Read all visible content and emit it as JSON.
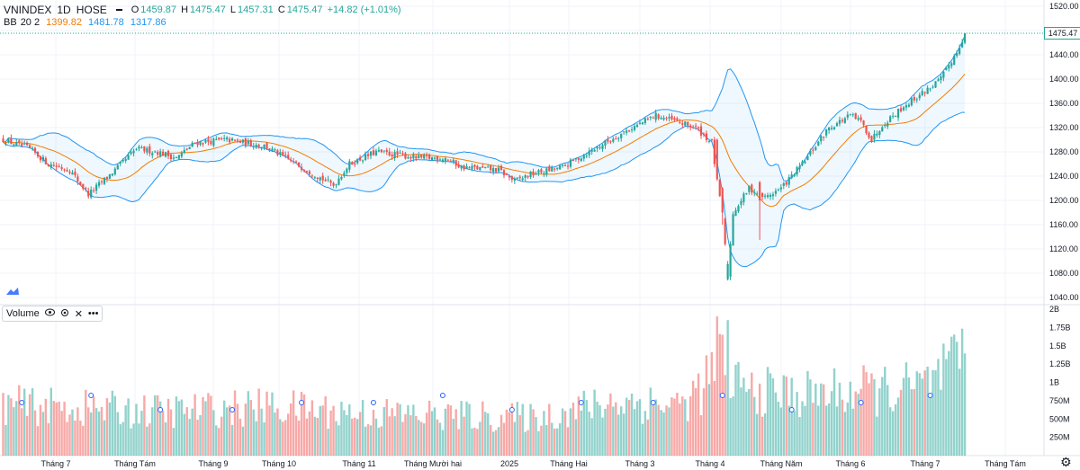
{
  "header": {
    "symbol": "VNINDEX",
    "interval": "1D",
    "exchange": "HOSE",
    "open_label": "O",
    "open": "1459.87",
    "high_label": "H",
    "high": "1475.47",
    "low_label": "L",
    "low": "1457.31",
    "close_label": "C",
    "close": "1475.47",
    "change": "+14.82 (+1.01%)"
  },
  "bb_legend": {
    "name": "BB",
    "params": "20 2",
    "basis": "1399.82",
    "upper": "1481.78",
    "lower": "1317.86"
  },
  "volume_legend": {
    "label": "Volume",
    "more": "•••"
  },
  "last_price_label": "1475.47",
  "colors": {
    "up": "#26a69a",
    "down": "#ef5350",
    "basis": "#f57c00",
    "band": "#2196f3"
  },
  "chart_data": [
    {
      "type": "candlestick",
      "title": "VNINDEX 1D HOSE",
      "x_ticks": [
        "Tháng 7",
        "Tháng Tám",
        "Tháng 9",
        "Tháng 10",
        "Tháng 11",
        "Tháng Mười hai",
        "2025",
        "Tháng Hai",
        "Tháng 3",
        "Tháng 4",
        "Tháng Năm",
        "Tháng 6",
        "Tháng 7",
        "Tháng Tám"
      ],
      "y_ticks": [
        "1520.00",
        "1480.00",
        "1440.00",
        "1400.00",
        "1360.00",
        "1320.00",
        "1280.00",
        "1240.00",
        "1200.00",
        "1160.00",
        "1120.00",
        "1080.00",
        "1040.00"
      ],
      "ylim": [
        1030,
        1525
      ],
      "close_anchors": [
        [
          0,
          1300
        ],
        [
          10,
          1285
        ],
        [
          17,
          1260
        ],
        [
          25,
          1250
        ],
        [
          32,
          1210
        ],
        [
          42,
          1250
        ],
        [
          50,
          1285
        ],
        [
          58,
          1280
        ],
        [
          65,
          1270
        ],
        [
          72,
          1295
        ],
        [
          84,
          1300
        ],
        [
          98,
          1290
        ],
        [
          110,
          1260
        ],
        [
          124,
          1225
        ],
        [
          130,
          1260
        ],
        [
          140,
          1280
        ],
        [
          156,
          1270
        ],
        [
          166,
          1270
        ],
        [
          172,
          1255
        ],
        [
          186,
          1250
        ],
        [
          192,
          1232
        ],
        [
          198,
          1243
        ],
        [
          210,
          1255
        ],
        [
          216,
          1270
        ],
        [
          234,
          1315
        ],
        [
          245,
          1340
        ],
        [
          260,
          1320
        ],
        [
          266,
          1295
        ],
        [
          268,
          1230
        ],
        [
          270,
          1175
        ],
        [
          272,
          1075
        ],
        [
          274,
          1180
        ],
        [
          280,
          1220
        ],
        [
          286,
          1205
        ],
        [
          292,
          1220
        ],
        [
          300,
          1260
        ],
        [
          310,
          1320
        ],
        [
          318,
          1340
        ],
        [
          322,
          1330
        ],
        [
          326,
          1300
        ],
        [
          330,
          1325
        ],
        [
          338,
          1355
        ],
        [
          346,
          1380
        ],
        [
          352,
          1400
        ],
        [
          358,
          1445
        ],
        [
          361,
          1475.47
        ]
      ],
      "series": [
        {
          "name": "Price",
          "type": "ohlc"
        },
        {
          "name": "BB Basis",
          "period": 20
        },
        {
          "name": "BB Upper",
          "mult": 2
        },
        {
          "name": "BB Lower",
          "mult": 2
        }
      ]
    },
    {
      "type": "bar",
      "title": "Volume",
      "y_ticks": [
        "2B",
        "1.75B",
        "1.5B",
        "1.25B",
        "1B",
        "750M",
        "500M",
        "250M"
      ],
      "ylim": [
        0,
        2000000000
      ],
      "volume_profile_M": [
        [
          0,
          750
        ],
        [
          30,
          700
        ],
        [
          60,
          650
        ],
        [
          100,
          720
        ],
        [
          140,
          620
        ],
        [
          180,
          580
        ],
        [
          200,
          560
        ],
        [
          230,
          800
        ],
        [
          255,
          750
        ],
        [
          265,
          1100
        ],
        [
          268,
          1500
        ],
        [
          272,
          1200
        ],
        [
          280,
          950
        ],
        [
          300,
          900
        ],
        [
          320,
          950
        ],
        [
          345,
          1000
        ],
        [
          355,
          1250
        ],
        [
          361,
          1380
        ]
      ]
    }
  ]
}
